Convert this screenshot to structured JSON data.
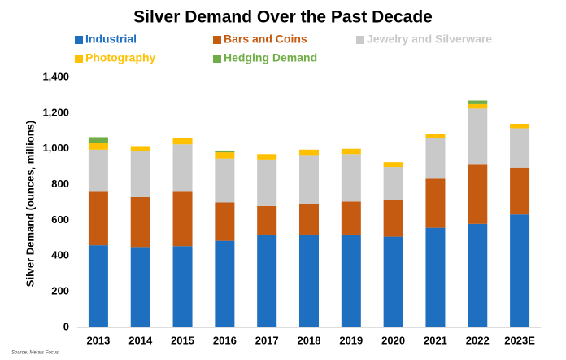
{
  "chart_data": {
    "type": "stacked_bar",
    "title": "Silver Demand Over the Past Decade",
    "ylabel": "Silver Demand (ounces, millions)",
    "source": "Source: Metals Focus",
    "categories": [
      "2013",
      "2014",
      "2015",
      "2016",
      "2017",
      "2018",
      "2019",
      "2020",
      "2021",
      "2022",
      "2023E"
    ],
    "series": [
      {
        "name": "Industrial",
        "color": "#1f6fc1",
        "values": [
          460,
          450,
          455,
          485,
          520,
          520,
          520,
          508,
          558,
          580,
          633
        ]
      },
      {
        "name": "Bars and Coins",
        "color": "#c55a11",
        "values": [
          300,
          280,
          305,
          215,
          160,
          170,
          185,
          205,
          275,
          335,
          262
        ]
      },
      {
        "name": "Jewelry and Silverware",
        "color": "#c9c9c9",
        "values": [
          235,
          255,
          265,
          245,
          260,
          275,
          265,
          185,
          225,
          310,
          220
        ]
      },
      {
        "name": "Photography",
        "color": "#ffc000",
        "values": [
          40,
          30,
          35,
          35,
          30,
          30,
          30,
          27,
          25,
          25,
          25
        ]
      },
      {
        "name": "Hedging Demand",
        "color": "#70ad47",
        "values": [
          30,
          0,
          0,
          10,
          0,
          0,
          0,
          0,
          0,
          20,
          0
        ]
      }
    ],
    "ylim": [
      0,
      1400
    ],
    "yticks": [
      0,
      200,
      400,
      600,
      800,
      {
        "value": 1000,
        "label": "1,000"
      },
      {
        "value": 1200,
        "label": "1,200"
      },
      {
        "value": 1400,
        "label": "1,400"
      }
    ],
    "grid": false
  }
}
